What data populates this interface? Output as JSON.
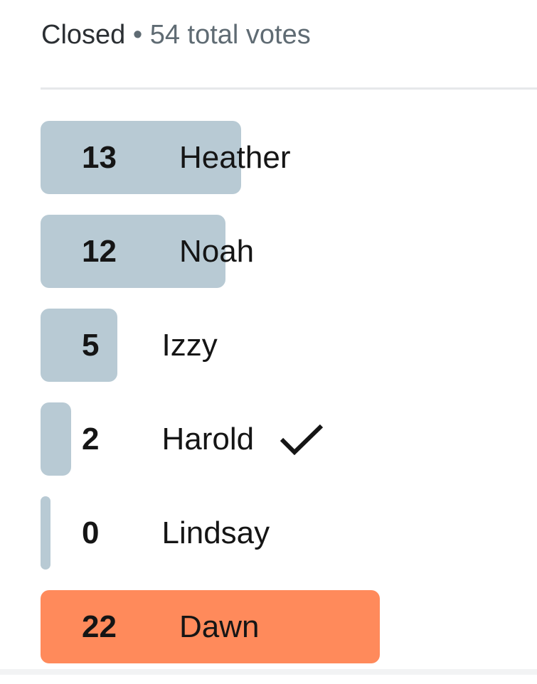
{
  "header": {
    "status": "Closed",
    "separator": " • ",
    "total_votes": "54 total votes"
  },
  "colors": {
    "bar": "#b8cad4",
    "winner": "#ff8a5b"
  },
  "max_votes": 22,
  "options": [
    {
      "count": "13",
      "votes": 13,
      "name": "Heather",
      "winner": false,
      "selected": false
    },
    {
      "count": "12",
      "votes": 12,
      "name": "Noah",
      "winner": false,
      "selected": false
    },
    {
      "count": "5",
      "votes": 5,
      "name": "Izzy",
      "winner": false,
      "selected": false
    },
    {
      "count": "2",
      "votes": 2,
      "name": "Harold",
      "winner": false,
      "selected": true,
      "icon": "checkmark-icon"
    },
    {
      "count": "0",
      "votes": 0,
      "name": "Lindsay",
      "winner": false,
      "selected": false
    },
    {
      "count": "22",
      "votes": 22,
      "name": "Dawn",
      "winner": true,
      "selected": false
    }
  ]
}
